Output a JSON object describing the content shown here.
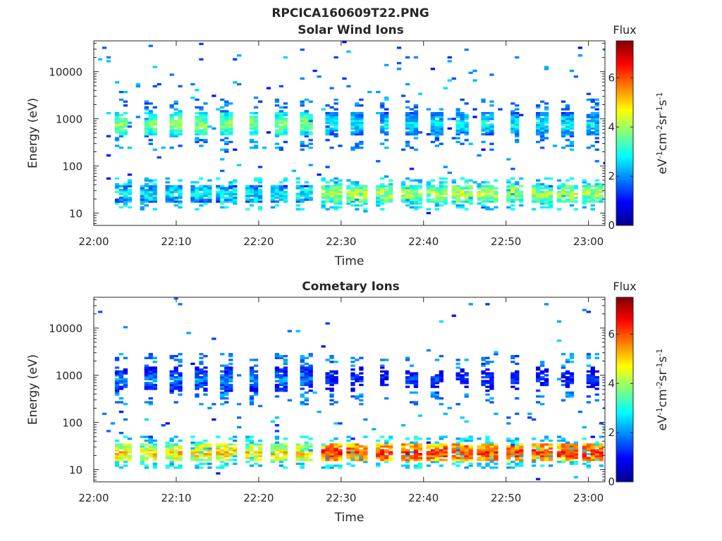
{
  "figure": {
    "title": "RPCICA160609T22.PNG"
  },
  "chart_data": [
    {
      "type": "heatmap",
      "title": "Solar Wind Ions",
      "xlabel": "Time",
      "ylabel": "Energy (eV)",
      "x_ticks": [
        "22:00",
        "22:10",
        "22:20",
        "22:30",
        "22:40",
        "22:50",
        "23:00"
      ],
      "y_ticks": [
        "10",
        "100",
        "1000",
        "10000"
      ],
      "y_scale": "log",
      "xlim": [
        "22:00",
        "23:02"
      ],
      "ylim": [
        5.5,
        45000
      ],
      "colorbar": {
        "label": "Flux",
        "unit": "eV-1cm-2sr-1s-1",
        "range": [
          0,
          7.5
        ],
        "ticks": [
          "0",
          "2",
          "4",
          "6"
        ]
      },
      "colormap": "jet",
      "features": {
        "sweep_start_minutes": [
          2.7,
          5.9,
          9.0,
          12.2,
          15.4,
          18.6,
          21.7,
          24.9,
          28.0,
          31.2,
          34.4,
          37.6,
          40.7,
          43.9,
          47.0,
          50.2,
          53.4,
          56.6,
          59.8
        ],
        "high_energy_band": {
          "center_ev": 750,
          "flux_first8": 3.9,
          "flux_after": 2.9
        },
        "low_energy_band": {
          "center_ev": 25,
          "flux_first8": 2.9,
          "flux_after": 4.2
        },
        "band_shift_start_minutes": 27.5
      }
    },
    {
      "type": "heatmap",
      "title": "Cometary Ions",
      "xlabel": "Time",
      "ylabel": "Energy (eV)",
      "x_ticks": [
        "22:00",
        "22:10",
        "22:20",
        "22:30",
        "22:40",
        "22:50",
        "23:00"
      ],
      "y_ticks": [
        "10",
        "100",
        "1000",
        "10000"
      ],
      "y_scale": "log",
      "xlim": [
        "22:00",
        "23:02"
      ],
      "ylim": [
        5.5,
        45000
      ],
      "colorbar": {
        "label": "Flux",
        "unit": "eV-1cm-2sr-1s-1",
        "range": [
          0,
          7.5
        ],
        "ticks": [
          "0",
          "2",
          "4",
          "6"
        ]
      },
      "colormap": "jet",
      "features": {
        "sweep_start_minutes": [
          2.7,
          5.9,
          9.0,
          12.2,
          15.4,
          18.6,
          21.7,
          24.9,
          28.0,
          31.2,
          34.4,
          37.6,
          40.7,
          43.9,
          47.0,
          50.2,
          53.4,
          56.6,
          59.8
        ],
        "high_energy_band": {
          "center_ev": 800,
          "flux_first8": 2.0,
          "flux_after": 1.3
        },
        "low_energy_band": {
          "center_ev": 22,
          "flux_first8": 5.0,
          "flux_after": 6.2
        },
        "band_shift_start_minutes": 27.5
      }
    }
  ]
}
